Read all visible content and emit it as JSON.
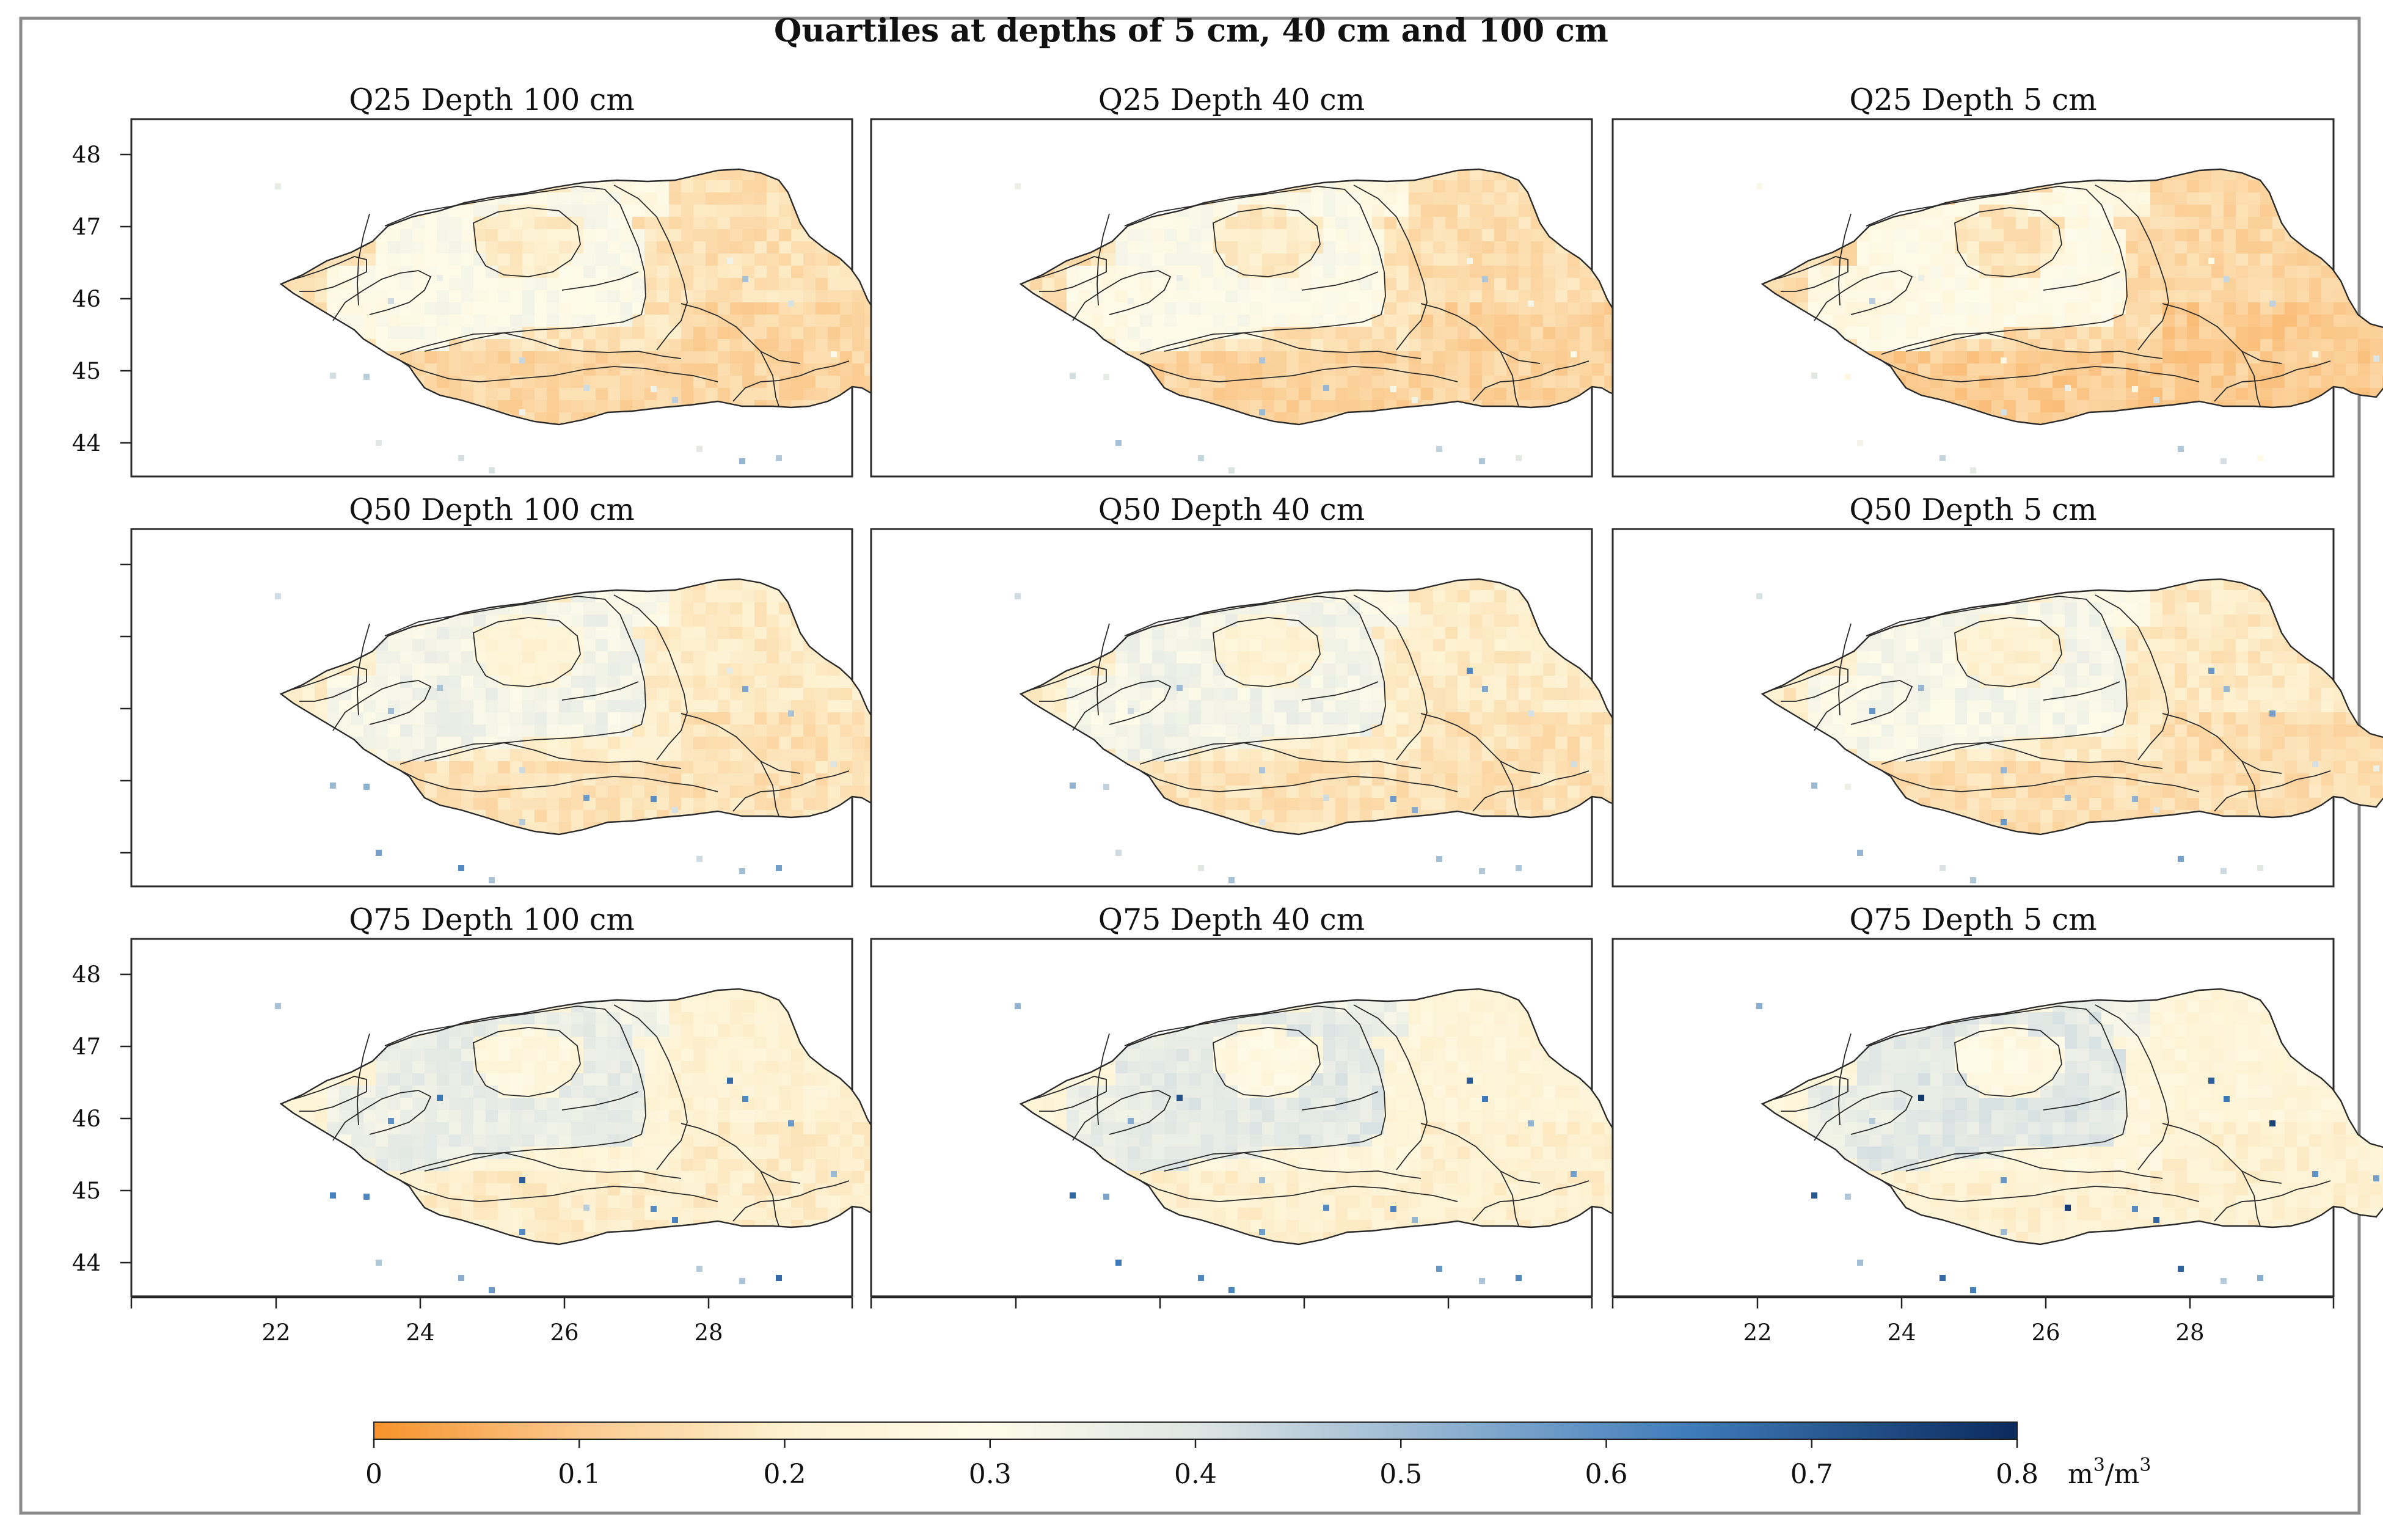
{
  "figure": {
    "title": "Quartiles at depths of 5 cm, 40 cm and 100 cm"
  },
  "panels": [
    {
      "id": "q25-d100",
      "title": "Q25 Depth 100 cm",
      "quartile": "Q25",
      "depth_cm": 100
    },
    {
      "id": "q25-d40",
      "title": "Q25 Depth 40 cm",
      "quartile": "Q25",
      "depth_cm": 40
    },
    {
      "id": "q25-d5",
      "title": "Q25 Depth 5 cm",
      "quartile": "Q25",
      "depth_cm": 5
    },
    {
      "id": "q50-d100",
      "title": "Q50 Depth 100 cm",
      "quartile": "Q50",
      "depth_cm": 100
    },
    {
      "id": "q50-d40",
      "title": "Q50 Depth 40 cm",
      "quartile": "Q50",
      "depth_cm": 40
    },
    {
      "id": "q50-d5",
      "title": "Q50 Depth 5 cm",
      "quartile": "Q50",
      "depth_cm": 5
    },
    {
      "id": "q75-d100",
      "title": "Q75 Depth 100 cm",
      "quartile": "Q75",
      "depth_cm": 100
    },
    {
      "id": "q75-d40",
      "title": "Q75 Depth 40 cm",
      "quartile": "Q75",
      "depth_cm": 40
    },
    {
      "id": "q75-d5",
      "title": "Q75 Depth 5 cm",
      "quartile": "Q75",
      "depth_cm": 5
    }
  ],
  "axes": {
    "y_ticks": [
      "48",
      "47",
      "46",
      "45",
      "44"
    ],
    "x_ticks": [
      "22",
      "24",
      "26",
      "28"
    ],
    "lon_range": [
      20.0,
      30.0
    ],
    "lat_range": [
      43.5,
      48.5
    ]
  },
  "colorbar": {
    "ticks": [
      "0",
      "0.1",
      "0.2",
      "0.3",
      "0.4",
      "0.5",
      "0.6",
      "0.7",
      "0.8"
    ],
    "unit_base": "m",
    "unit_sup": "3",
    "unit_sep": "/m",
    "unit_sup2": "3",
    "range": [
      0,
      0.8
    ],
    "colors": [
      "#f7922a",
      "#fbc98d",
      "#fdf1d0",
      "#fefbe9",
      "#dfe6e4",
      "#9ebbd4",
      "#3f7bbb",
      "#0b2a5c"
    ]
  },
  "colors": {
    "outline": "#2a2a2a",
    "frame": "#333333",
    "figure_border": "#777777"
  }
}
